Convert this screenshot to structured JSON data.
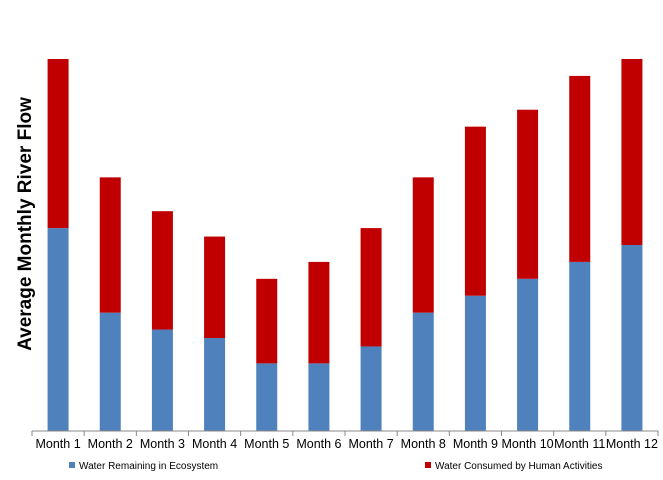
{
  "chart_data": {
    "type": "bar",
    "stacked": true,
    "title": "",
    "xlabel": "",
    "ylabel": "Average Monthly River Flow",
    "ylim": [
      0,
      22
    ],
    "grid": false,
    "legend_position": "bottom",
    "categories": [
      "Month 1",
      "Month 2",
      "Month 3",
      "Month 4",
      "Month 5",
      "Month 6",
      "Month 7",
      "Month 8",
      "Month 9",
      "Month 10",
      "Month 11",
      "Month 12"
    ],
    "series": [
      {
        "name": "Water Remaining in Ecosystem",
        "color": "#4F81BD",
        "values": [
          12,
          7,
          6,
          5.5,
          4,
          4,
          5,
          7,
          8,
          9,
          10,
          11
        ]
      },
      {
        "name": "Water Consumed by Human Activities",
        "color": "#C00000",
        "values": [
          10,
          8,
          7,
          6,
          5,
          6,
          7,
          8,
          10,
          10,
          11,
          11
        ]
      }
    ]
  }
}
